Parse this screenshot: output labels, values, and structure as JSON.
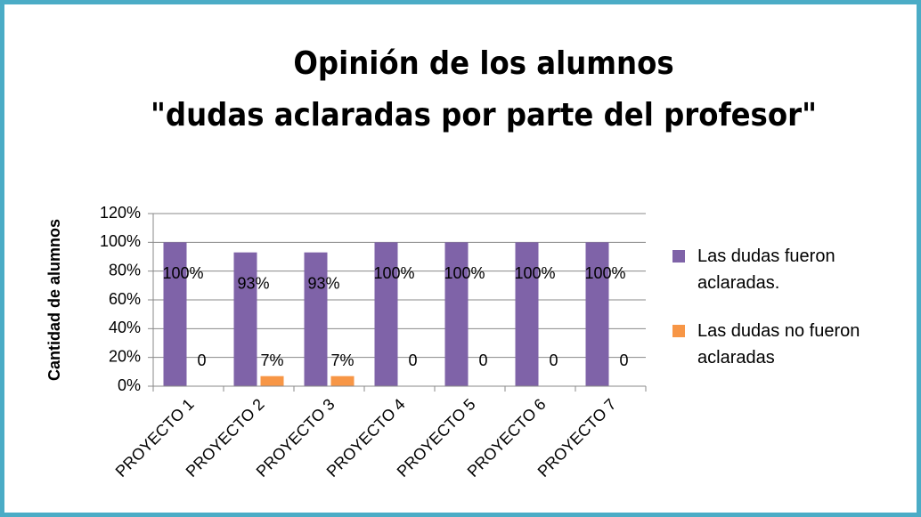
{
  "chart_data": {
    "type": "bar",
    "title": [
      "Opinión de los alumnos",
      "\"dudas aclaradas por parte del profesor\""
    ],
    "y_label": "Cantidad de alumnos",
    "categories": [
      "PROYECTO 1",
      "PROYECTO 2",
      "PROYECTO 3",
      "PROYECTO 4",
      "PROYECTO 5",
      "PROYECTO 6",
      "PROYECTO 7"
    ],
    "series": [
      {
        "name": "Las dudas fueron aclaradas.",
        "color": "#7f63a8",
        "values": [
          100,
          93,
          93,
          100,
          100,
          100,
          100
        ],
        "value_labels": [
          "100%",
          "93%",
          "93%",
          "100%",
          "100%",
          "100%",
          "100%"
        ]
      },
      {
        "name": "Las dudas no fueron aclaradas",
        "color": "#f79646",
        "values": [
          0,
          7,
          7,
          0,
          0,
          0,
          0
        ],
        "value_labels": [
          "0",
          "7%",
          "7%",
          "0",
          "0",
          "0",
          "0"
        ]
      }
    ],
    "ylim": [
      0,
      120
    ],
    "yticks": [
      {
        "value": 0,
        "label": "0%"
      },
      {
        "value": 20,
        "label": "20%"
      },
      {
        "value": 40,
        "label": "40%"
      },
      {
        "value": 60,
        "label": "60%"
      },
      {
        "value": 80,
        "label": "80%"
      },
      {
        "value": 100,
        "label": "100%"
      },
      {
        "value": 120,
        "label": "120%"
      }
    ],
    "grid": true,
    "legend": "right"
  }
}
